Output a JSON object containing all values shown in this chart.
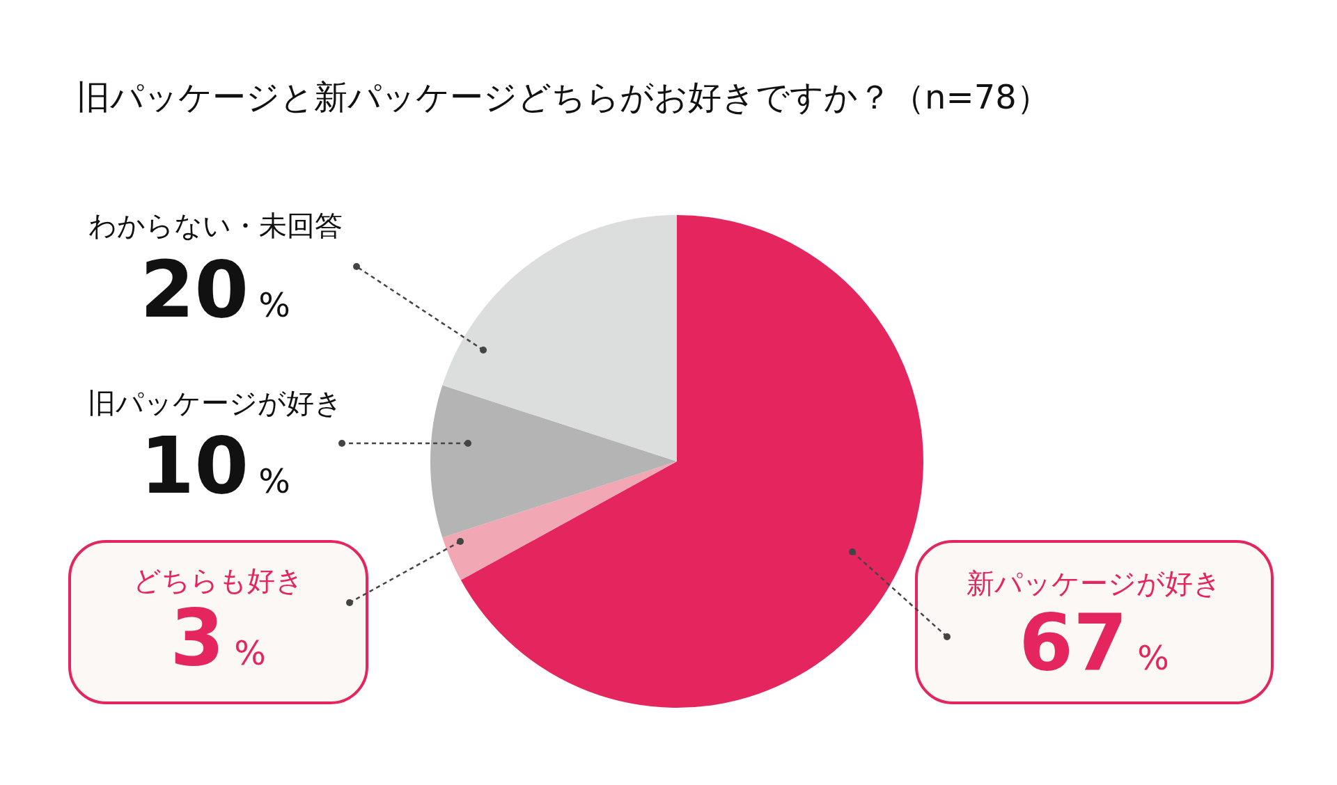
{
  "chart_data": {
    "type": "pie",
    "title": "旧パッケージと新パッケージどちらがお好きですか？（n=78）",
    "categories": [
      "新パッケージが好き",
      "どちらも好き",
      "旧パッケージが好き",
      "わからない・未回答"
    ],
    "values": [
      67,
      3,
      10,
      20
    ],
    "colors": [
      "#e5265e",
      "#f2a7b4",
      "#b4b4b4",
      "#dcdddd"
    ],
    "value_labels": [
      "67%",
      "3%",
      "10%",
      "20%"
    ]
  }
}
